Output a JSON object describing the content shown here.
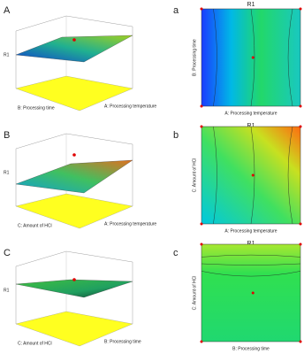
{
  "panels": [
    {
      "label3d": "A",
      "label2d": "a",
      "title": "R1",
      "z_label": "R1",
      "left_axis": "B: Processing time",
      "right_axis": "A: Processing temperature",
      "contour_x": "A: Processing temperature",
      "contour_y": "B: Processing time"
    },
    {
      "label3d": "B",
      "label2d": "b",
      "title": "R1",
      "z_label": "R1",
      "left_axis": "C: Amount of HCl",
      "right_axis": "A: Processing temperature",
      "contour_x": "A: Processing temperature",
      "contour_y": "C: Amount of HCl"
    },
    {
      "label3d": "C",
      "label2d": "c",
      "title": "R1",
      "z_label": "R1",
      "left_axis": "C: Amount of HCl",
      "right_axis": "B: Processing time",
      "contour_x": "B: Processing time",
      "contour_y": "C: Amount of HCl"
    }
  ]
}
